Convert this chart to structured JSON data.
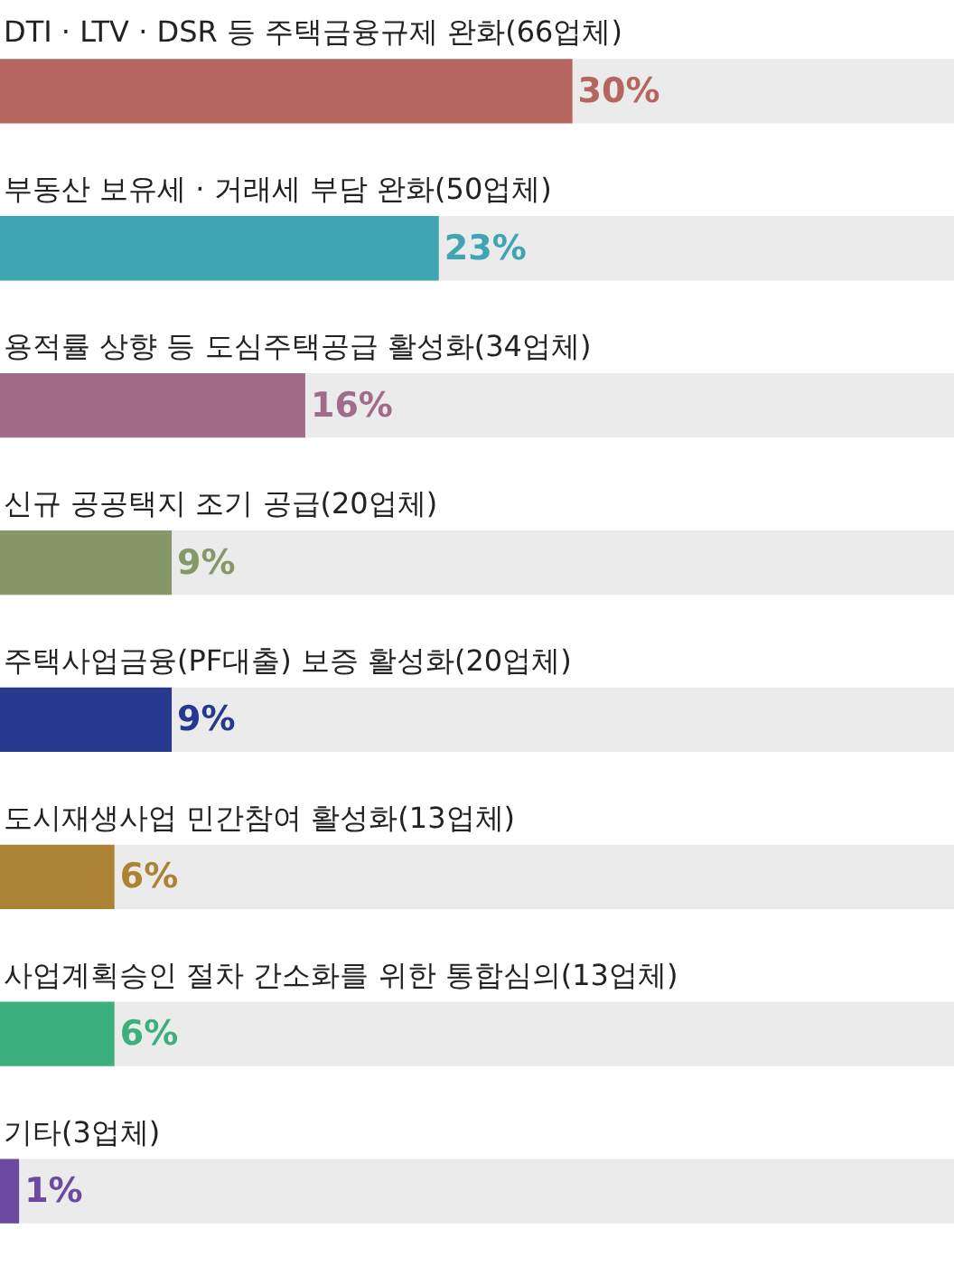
{
  "chart_data": {
    "type": "bar",
    "orientation": "horizontal",
    "categories": [
      "DTI · LTV · DSR 등 주택금융규제 완화(66업체)",
      "부동산 보유세 · 거래세 부담 완화(50업체)",
      "용적률 상향 등 도심주택공급 활성화(34업체)",
      "신규 공공택지 조기 공급(20업체)",
      "주택사업금융(PF대출) 보증 활성화(20업체)",
      "도시재생사업 민간참여 활성화(13업체)",
      "사업계획승인 절차 간소화를 위한 통합심의(13업체)",
      "기타(3업체)"
    ],
    "values": [
      30,
      23,
      16,
      9,
      9,
      6,
      6,
      1
    ],
    "colors": [
      "#b5665f",
      "#3fa5b3",
      "#a06c8a",
      "#869867",
      "#27388f",
      "#ac8234",
      "#3cb07c",
      "#6b4aa0"
    ],
    "value_labels": [
      "30%",
      "23%",
      "16%",
      "9%",
      "9%",
      "6%",
      "6%",
      "1%"
    ],
    "xlim": [
      0,
      50
    ],
    "tick_labels": false,
    "grid": false,
    "legend": false
  }
}
